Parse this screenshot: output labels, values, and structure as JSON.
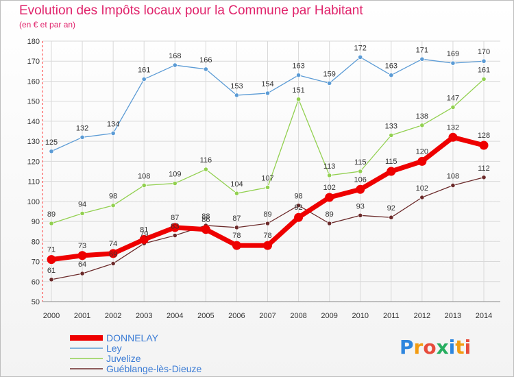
{
  "header": {
    "title": "Evolution des Impôts locaux pour la Commune par Habitant",
    "subtitle": "(en € et par an)"
  },
  "logo": {
    "text": "Proxiti",
    "colors": [
      "#2e86de",
      "#f39c12",
      "#e74c3c",
      "#27ae60"
    ]
  },
  "chart_data": {
    "type": "line",
    "x": [
      "2000",
      "2001",
      "2002",
      "2003",
      "2004",
      "2005",
      "2006",
      "2007",
      "2008",
      "2009",
      "2010",
      "2011",
      "2012",
      "2013",
      "2014"
    ],
    "ylim": [
      50,
      180
    ],
    "yticks": [
      50,
      60,
      70,
      80,
      90,
      100,
      110,
      120,
      130,
      140,
      150,
      160,
      170,
      180
    ],
    "grid": true,
    "legend_position": "bottom-left",
    "series": [
      {
        "name": "Ley",
        "color": "#5b9bd5",
        "values": [
          125,
          132,
          134,
          161,
          168,
          166,
          153,
          154,
          163,
          159,
          172,
          163,
          171,
          169,
          170
        ]
      },
      {
        "name": "Juvelize",
        "color": "#92d050",
        "values": [
          89,
          94,
          98,
          108,
          109,
          116,
          104,
          107,
          151,
          113,
          115,
          133,
          138,
          147,
          161
        ]
      },
      {
        "name": "Guéblange-lès-Dieuze",
        "color": "#6b2a2a",
        "values": [
          61,
          64,
          69,
          79,
          83,
          88,
          87,
          89,
          98,
          89,
          93,
          92,
          102,
          108,
          112
        ]
      },
      {
        "name": "DONNELAY",
        "color": "#ee0000",
        "values": [
          71,
          73,
          74,
          81,
          87,
          86,
          78,
          78,
          92,
          102,
          106,
          115,
          120,
          132,
          128
        ]
      }
    ],
    "legend_order": [
      "DONNELAY",
      "Ley",
      "Juvelize",
      "Guéblange-lès-Dieuze"
    ]
  }
}
